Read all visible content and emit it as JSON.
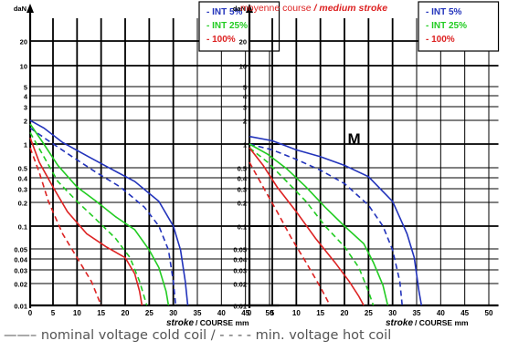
{
  "footer_caption": "——– nominal voltage cold coil / - - - - min. voltage hot coil",
  "colors": {
    "int5": "#2233bb",
    "int25": "#22cc22",
    "p100": "#dd2222",
    "grid": "#000000"
  },
  "chart_data": [
    {
      "type": "line",
      "title_fr": "",
      "title_en": "",
      "marker": "",
      "yunit": "daN",
      "xlabel_en": "stroke",
      "xlabel_fr": "/ COURSE mm",
      "yscale": "log",
      "ylim": [
        0.01,
        30
      ],
      "xlim": [
        0,
        52
      ],
      "xticks": [
        "0",
        "5",
        "10",
        "15",
        "20",
        "25",
        "30",
        "35",
        "40",
        "45",
        "50"
      ],
      "yticks": [
        "0.01",
        "0.02",
        "0.03",
        "0.04",
        "0.05",
        "0.1",
        "0.2",
        "0.3",
        "0.4",
        "0.5",
        "1",
        "2",
        "3",
        "4",
        "5",
        "10",
        "20"
      ],
      "legend": [
        "- INT 5%",
        "- INT 25%",
        "- 100%"
      ],
      "legend_placement": "top-right",
      "grid": true,
      "series": [
        {
          "name": "INT 5%",
          "style": "solid",
          "color": "int5",
          "points": [
            [
              0,
              2
            ],
            [
              3,
              1.6
            ],
            [
              7,
              1.05
            ],
            [
              12,
              0.72
            ],
            [
              17,
              0.5
            ],
            [
              22,
              0.35
            ],
            [
              27,
              0.2
            ],
            [
              30,
              0.1
            ],
            [
              31.5,
              0.05
            ],
            [
              32.5,
              0.02
            ],
            [
              33,
              0.01
            ]
          ]
        },
        {
          "name": "INT 5%",
          "style": "dashed",
          "color": "int5",
          "points": [
            [
              0,
              1.6
            ],
            [
              4,
              1.1
            ],
            [
              9,
              0.7
            ],
            [
              14,
              0.45
            ],
            [
              19,
              0.3
            ],
            [
              24,
              0.17
            ],
            [
              27,
              0.1
            ],
            [
              29,
              0.05
            ],
            [
              30,
              0.02
            ],
            [
              30.5,
              0.01
            ]
          ]
        },
        {
          "name": "INT 25%",
          "style": "solid",
          "color": "int25",
          "points": [
            [
              0,
              1.8
            ],
            [
              3,
              1.0
            ],
            [
              6,
              0.55
            ],
            [
              10,
              0.3
            ],
            [
              14,
              0.2
            ],
            [
              18,
              0.13
            ],
            [
              22,
              0.09
            ],
            [
              25,
              0.05
            ],
            [
              27,
              0.03
            ],
            [
              28.5,
              0.015
            ],
            [
              29,
              0.01
            ]
          ]
        },
        {
          "name": "INT 25%",
          "style": "dashed",
          "color": "int25",
          "points": [
            [
              0,
              1.4
            ],
            [
              3,
              0.7
            ],
            [
              6,
              0.35
            ],
            [
              10,
              0.2
            ],
            [
              14,
              0.12
            ],
            [
              18,
              0.07
            ],
            [
              21,
              0.04
            ],
            [
              23,
              0.02
            ],
            [
              24.5,
              0.01
            ]
          ]
        },
        {
          "name": "100%",
          "style": "solid",
          "color": "p100",
          "points": [
            [
              0,
              1.2
            ],
            [
              2,
              0.6
            ],
            [
              5,
              0.3
            ],
            [
              8,
              0.15
            ],
            [
              12,
              0.08
            ],
            [
              16,
              0.055
            ],
            [
              20,
              0.04
            ],
            [
              22,
              0.025
            ],
            [
              23,
              0.015
            ],
            [
              23.5,
              0.01
            ]
          ]
        },
        {
          "name": "100%",
          "style": "dashed",
          "color": "p100",
          "points": [
            [
              0,
              0.9
            ],
            [
              2,
              0.45
            ],
            [
              4,
              0.2
            ],
            [
              7,
              0.08
            ],
            [
              10,
              0.04
            ],
            [
              13,
              0.02
            ],
            [
              15,
              0.01
            ]
          ]
        }
      ]
    },
    {
      "type": "line",
      "title_fr": "moyenne course",
      "title_en": "/ medium stroke",
      "marker": "M",
      "yunit": "daN",
      "xlabel_en": "stroke",
      "xlabel_fr": "/ COURSE mm",
      "yscale": "log",
      "ylim": [
        0.01,
        30
      ],
      "xlim": [
        0,
        52
      ],
      "xticks": [
        "0",
        "5",
        "10",
        "15",
        "20",
        "25",
        "30",
        "35",
        "40",
        "45",
        "50"
      ],
      "yticks": [
        "0.01",
        "0.02",
        "0.03",
        "0.04",
        "0.05",
        "0.1",
        "0.2",
        "0.3",
        "0.4",
        "0.5",
        "1",
        "2",
        "3",
        "4",
        "5",
        "10",
        "20"
      ],
      "legend": [
        "- INT 5%",
        "- INT 25%",
        "- 100%"
      ],
      "legend_placement": "top-right",
      "grid": true,
      "series": [
        {
          "name": "INT 5%",
          "style": "solid",
          "color": "int5",
          "points": [
            [
              0,
              1.25
            ],
            [
              5,
              1.1
            ],
            [
              10,
              0.85
            ],
            [
              15,
              0.7
            ],
            [
              20,
              0.55
            ],
            [
              25,
              0.4
            ],
            [
              30,
              0.2
            ],
            [
              33,
              0.08
            ],
            [
              34.5,
              0.04
            ],
            [
              35.5,
              0.015
            ],
            [
              36,
              0.01
            ]
          ]
        },
        {
          "name": "INT 5%",
          "style": "dashed",
          "color": "int5",
          "points": [
            [
              0,
              1.0
            ],
            [
              5,
              0.85
            ],
            [
              10,
              0.65
            ],
            [
              15,
              0.48
            ],
            [
              20,
              0.33
            ],
            [
              25,
              0.18
            ],
            [
              28,
              0.1
            ],
            [
              30,
              0.05
            ],
            [
              31.5,
              0.02
            ],
            [
              32,
              0.01
            ]
          ]
        },
        {
          "name": "INT 25%",
          "style": "solid",
          "color": "int25",
          "points": [
            [
              0,
              1.0
            ],
            [
              4,
              0.75
            ],
            [
              8,
              0.5
            ],
            [
              12,
              0.3
            ],
            [
              16,
              0.17
            ],
            [
              20,
              0.1
            ],
            [
              24,
              0.06
            ],
            [
              26,
              0.035
            ],
            [
              28,
              0.018
            ],
            [
              29,
              0.01
            ]
          ]
        },
        {
          "name": "INT 25%",
          "style": "dashed",
          "color": "int25",
          "points": [
            [
              0,
              0.9
            ],
            [
              4,
              0.6
            ],
            [
              8,
              0.35
            ],
            [
              12,
              0.2
            ],
            [
              16,
              0.1
            ],
            [
              20,
              0.055
            ],
            [
              23,
              0.03
            ],
            [
              25,
              0.015
            ],
            [
              26,
              0.01
            ]
          ]
        },
        {
          "name": "100%",
          "style": "solid",
          "color": "p100",
          "points": [
            [
              0,
              0.9
            ],
            [
              3,
              0.55
            ],
            [
              6,
              0.3
            ],
            [
              10,
              0.15
            ],
            [
              14,
              0.07
            ],
            [
              18,
              0.035
            ],
            [
              21,
              0.02
            ],
            [
              23,
              0.013
            ],
            [
              24,
              0.01
            ]
          ]
        },
        {
          "name": "100%",
          "style": "dashed",
          "color": "p100",
          "points": [
            [
              0,
              0.6
            ],
            [
              3,
              0.3
            ],
            [
              6,
              0.15
            ],
            [
              9,
              0.07
            ],
            [
              12,
              0.035
            ],
            [
              15,
              0.017
            ],
            [
              17,
              0.01
            ]
          ]
        }
      ]
    }
  ]
}
